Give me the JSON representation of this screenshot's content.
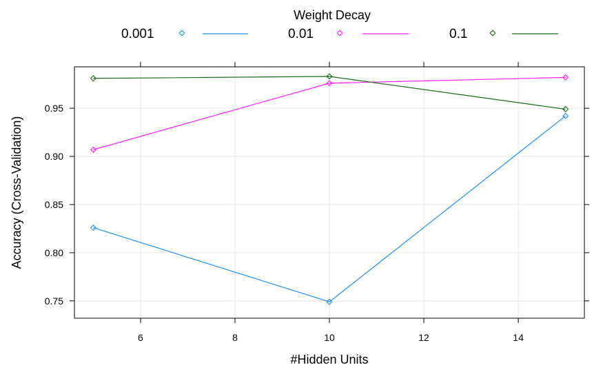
{
  "chart_data": {
    "type": "line",
    "title": "",
    "legend": {
      "title": "Weight Decay",
      "position": "top"
    },
    "xlabel": "#Hidden Units",
    "ylabel": "Accuracy (Cross-Validation)",
    "xlim": [
      4.6,
      15.4
    ],
    "ylim": [
      0.732,
      0.993
    ],
    "xticks": [
      6,
      8,
      10,
      12,
      14
    ],
    "yticks": [
      0.75,
      0.8,
      0.85,
      0.9,
      0.95
    ],
    "xtick_labels": [
      "6",
      "8",
      "10",
      "12",
      "14"
    ],
    "ytick_labels": [
      "0.75",
      "0.80",
      "0.85",
      "0.90",
      "0.95"
    ],
    "grid": true,
    "x": [
      5,
      10,
      15
    ],
    "series": [
      {
        "name": "0.001",
        "color": "#1f8ff0",
        "values": [
          0.826,
          0.749,
          0.942
        ]
      },
      {
        "name": "0.01",
        "color": "#ff1aff",
        "values": [
          0.907,
          0.976,
          0.982
        ]
      },
      {
        "name": "0.1",
        "color": "#1a6b1a",
        "values": [
          0.981,
          0.983,
          0.949
        ]
      }
    ]
  }
}
